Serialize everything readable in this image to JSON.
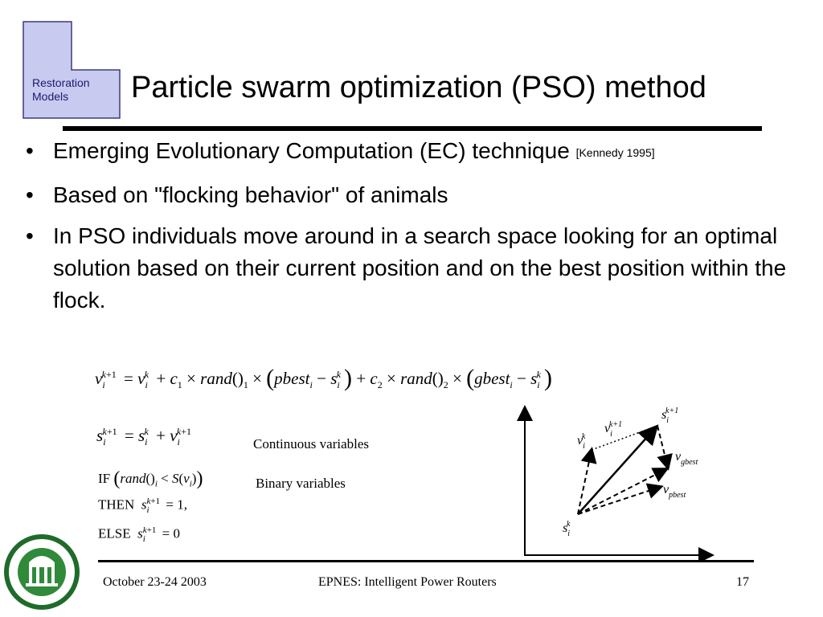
{
  "logo": {
    "line1": "Restoration",
    "line2": "Models"
  },
  "slide": {
    "title": "Particle swarm optimization (PSO) method"
  },
  "bullets": [
    {
      "text": "Emerging Evolutionary Computation (EC) technique",
      "citation": "[Kennedy 1995]"
    },
    {
      "text": "Based on \"flocking behavior\" of animals"
    },
    {
      "text": "In PSO individuals move around in a search space looking for an optimal solution based on their current position and on the best position within the flock."
    }
  ],
  "bullet_glyph": "•",
  "equations": {
    "continuous_label": "Continuous variables",
    "binary_label": "Binary variables",
    "if_kw": "IF",
    "then_kw": "THEN",
    "else_kw": "ELSE"
  },
  "diagram_labels": {
    "v_i_k": "v",
    "v_i_k1": "v",
    "s_i_k1": "s",
    "v_gbest": "v",
    "v_pbest": "v",
    "s_i_k": "s",
    "sub_gbest": "gbest",
    "sub_pbest": "pbest"
  },
  "footer": {
    "date": "October 23-24 2003",
    "center": "EPNES: Intelligent Power Routers",
    "page": "17"
  }
}
